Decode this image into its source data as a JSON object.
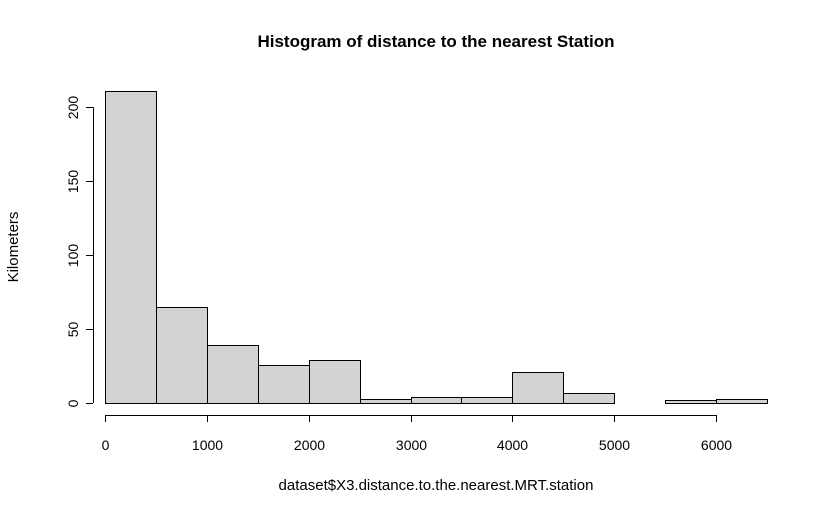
{
  "chart_data": {
    "type": "bar",
    "title": "Histogram of distance to the nearest Station",
    "xlabel": "dataset$X3.distance.to.the.nearest.MRT.station",
    "ylabel": "Kilometers",
    "bin_edges": [
      0,
      500,
      1000,
      1500,
      2000,
      2500,
      3000,
      3500,
      4000,
      4500,
      5000,
      5500,
      6000,
      6500
    ],
    "values": [
      211,
      65,
      39,
      26,
      29,
      3,
      4,
      4,
      21,
      7,
      0,
      2,
      3
    ],
    "xlim": [
      0,
      6500
    ],
    "ylim": [
      0,
      211
    ],
    "x_ticks": [
      0,
      1000,
      2000,
      3000,
      4000,
      5000,
      6000
    ],
    "x_tick_labels": [
      "0",
      "1000",
      "2000",
      "3000",
      "4000",
      "5000",
      "6000"
    ],
    "y_ticks": [
      0,
      50,
      100,
      150,
      200
    ],
    "y_tick_labels": [
      "0",
      "50",
      "100",
      "150",
      "200"
    ],
    "grid": false,
    "bar_color": "#d3d3d3",
    "edge_color": "#000000"
  }
}
